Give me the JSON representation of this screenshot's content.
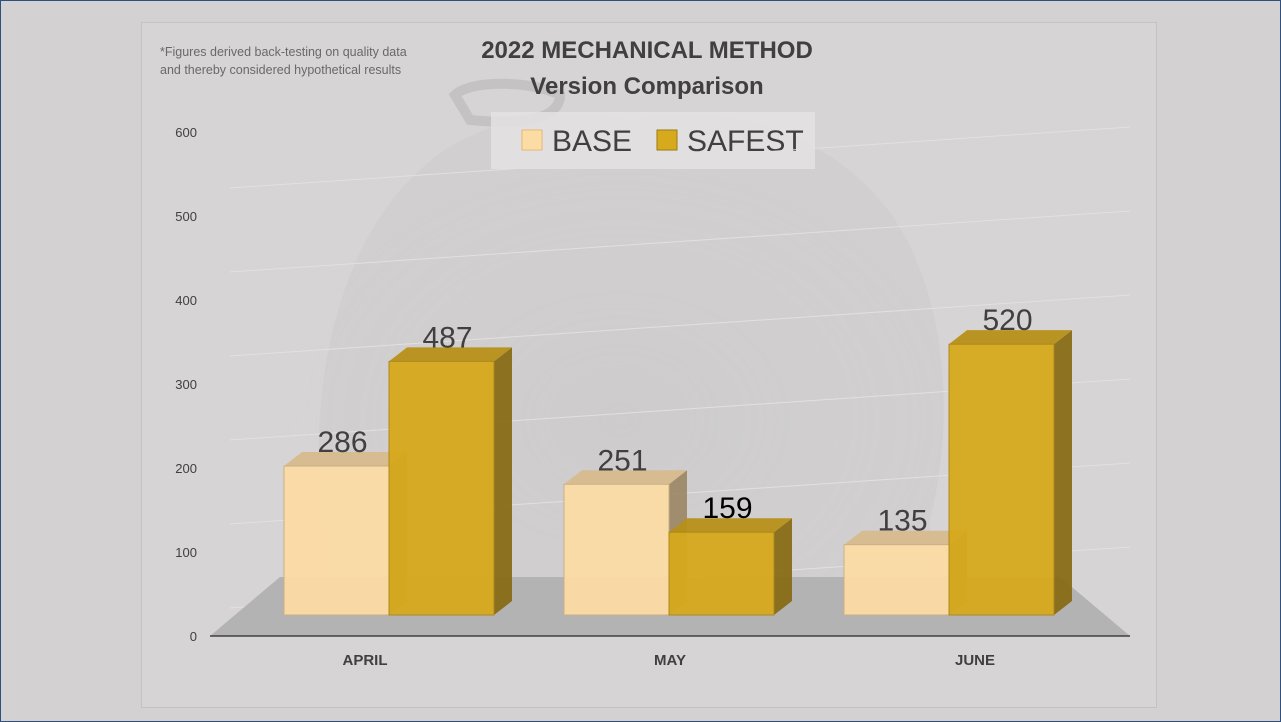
{
  "chart_data": {
    "type": "bar",
    "title": "2022 MECHANICAL METHOD",
    "subtitle": "Version Comparison",
    "note_lines": [
      "*Figures derived back-testing on quality data",
      "and thereby considered hypothetical results"
    ],
    "categories": [
      "APRIL",
      "MAY",
      "JUNE"
    ],
    "series": [
      {
        "name": "BASE",
        "values": [
          286,
          251,
          135
        ],
        "color": "#fcdca5"
      },
      {
        "name": "SAFEST",
        "values": [
          487,
          159,
          520
        ],
        "color": "#d7a91c"
      }
    ],
    "ylim": [
      0,
      600
    ],
    "yticks": [
      0,
      100,
      200,
      300,
      400,
      500,
      600
    ],
    "legend_position": "top-center",
    "style": "3d-column",
    "grid": true
  }
}
